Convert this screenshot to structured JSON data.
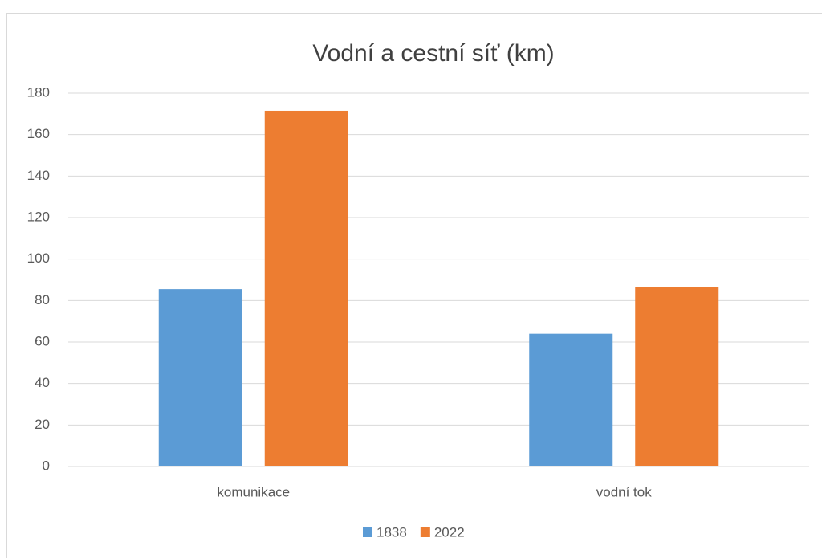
{
  "chart_data": {
    "type": "bar",
    "title": "Vodní a cestní síť (km)",
    "categories": [
      "komunikace",
      "vodní tok"
    ],
    "series": [
      {
        "name": "1838",
        "color": "#5b9bd5",
        "values": [
          85.5,
          64
        ]
      },
      {
        "name": "2022",
        "color": "#ed7d31",
        "values": [
          171.5,
          86.5
        ]
      }
    ],
    "ylim": [
      0,
      180
    ],
    "yticks": [
      0,
      20,
      40,
      60,
      80,
      100,
      120,
      140,
      160,
      180
    ],
    "grid": true,
    "legend": "bottom"
  }
}
